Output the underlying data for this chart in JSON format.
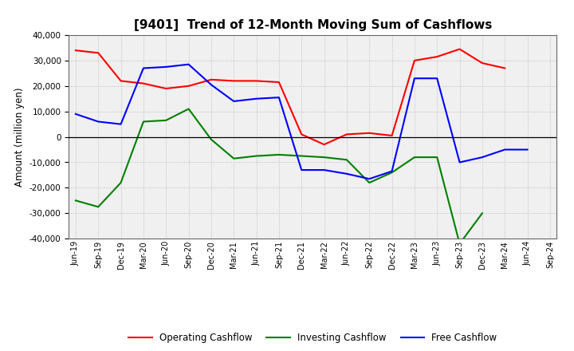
{
  "title": "[9401]  Trend of 12-Month Moving Sum of Cashflows",
  "ylabel": "Amount (million yen)",
  "x_labels": [
    "Jun-19",
    "Sep-19",
    "Dec-19",
    "Mar-20",
    "Jun-20",
    "Sep-20",
    "Dec-20",
    "Mar-21",
    "Jun-21",
    "Sep-21",
    "Dec-21",
    "Mar-22",
    "Jun-22",
    "Sep-22",
    "Dec-22",
    "Mar-23",
    "Jun-23",
    "Sep-23",
    "Dec-23",
    "Mar-24",
    "Jun-24",
    "Sep-24"
  ],
  "operating": [
    34000,
    33000,
    22000,
    21000,
    19000,
    20000,
    22500,
    22000,
    22000,
    21500,
    1000,
    -3000,
    1000,
    1500,
    500,
    30000,
    31500,
    34500,
    29000,
    27000,
    null,
    null
  ],
  "investing": [
    -25000,
    -27500,
    -18000,
    6000,
    6500,
    11000,
    -1000,
    -8500,
    -7500,
    -7000,
    -7500,
    -8000,
    -9000,
    -18000,
    -14000,
    -8000,
    -8000,
    -42000,
    -30000,
    null,
    null,
    null
  ],
  "free": [
    9000,
    6000,
    5000,
    27000,
    27500,
    28500,
    20500,
    14000,
    15000,
    15500,
    -13000,
    -13000,
    -14500,
    -16500,
    -13500,
    23000,
    23000,
    -10000,
    -8000,
    -5000,
    -5000,
    null
  ],
  "ylim": [
    -40000,
    40000
  ],
  "yticks": [
    -40000,
    -30000,
    -20000,
    -10000,
    0,
    10000,
    20000,
    30000,
    40000
  ],
  "colors": {
    "operating": "#ff0000",
    "investing": "#008000",
    "free": "#0000ff"
  },
  "legend_labels": [
    "Operating Cashflow",
    "Investing Cashflow",
    "Free Cashflow"
  ],
  "background_color": "#ffffff",
  "plot_bg_color": "#f0f0f0",
  "grid_color": "#bbbbbb"
}
